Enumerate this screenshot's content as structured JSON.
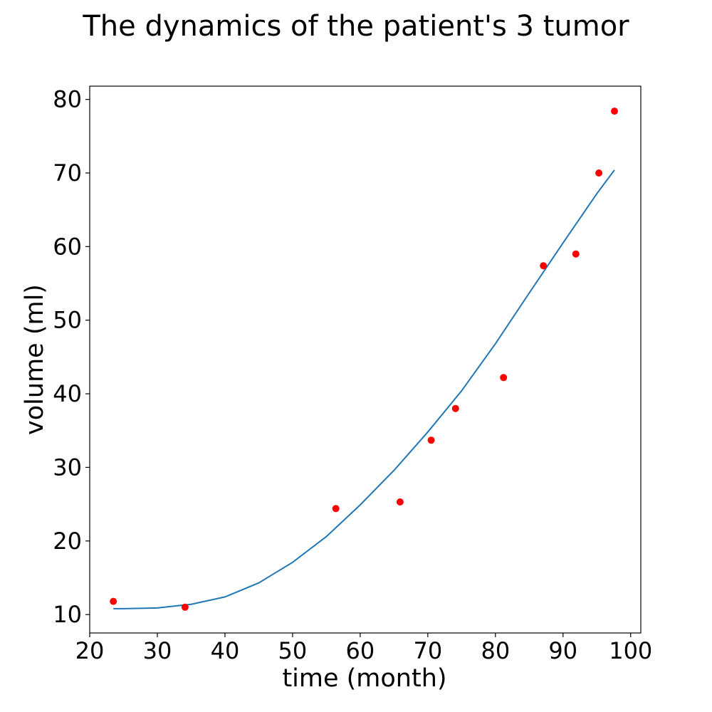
{
  "chart_data": {
    "type": "scatter",
    "title": "The dynamics of the patient's 3 tumor",
    "xlabel": "time (month)",
    "ylabel": "volume (ml)",
    "xlim": [
      20,
      101.5
    ],
    "ylim": [
      7.5,
      81.8
    ],
    "xticks": [
      20,
      30,
      40,
      50,
      60,
      70,
      80,
      90,
      100
    ],
    "yticks": [
      10,
      20,
      30,
      40,
      50,
      60,
      70,
      80
    ],
    "grid": false,
    "colors": {
      "points": "#ff0000",
      "fit_line": "#1f77b4",
      "axes": "#000000"
    },
    "series": [
      {
        "kind": "scatter",
        "x": [
          23.5,
          34.1,
          56.4,
          65.9,
          70.5,
          74.1,
          81.2,
          87.1,
          91.9,
          95.3,
          97.6
        ],
        "y": [
          11.8,
          11.0,
          24.4,
          25.3,
          33.7,
          38.0,
          42.2,
          57.4,
          59.0,
          70.0,
          78.4
        ]
      },
      {
        "kind": "line",
        "x": [
          23.5,
          25,
          30,
          35,
          40,
          45,
          50,
          55,
          60,
          65,
          70,
          75,
          80,
          85,
          90,
          95,
          97.6
        ],
        "y": [
          10.8,
          10.8,
          10.9,
          11.4,
          12.4,
          14.3,
          17.1,
          20.6,
          24.9,
          29.6,
          34.8,
          40.4,
          46.8,
          53.7,
          60.5,
          67.2,
          70.4
        ]
      }
    ]
  }
}
